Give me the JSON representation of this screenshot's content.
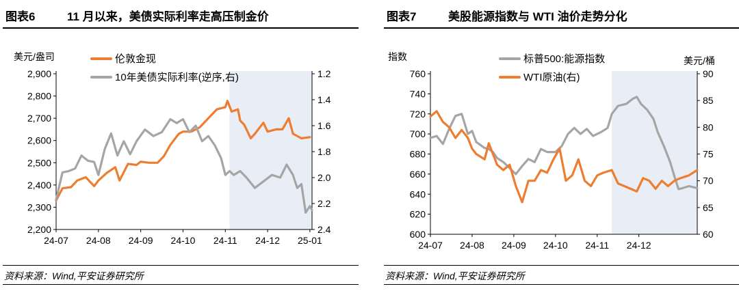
{
  "charts": [
    {
      "fig_num": "图表6",
      "title": "11 月以来，美债实际利率走高压制金价",
      "source": "资料来源：Wind,平安证券研究所",
      "left_unit": "美元/盎司",
      "right_unit": "",
      "legend": [
        "伦敦金现",
        "10年美债实际利率(逆序,右)"
      ]
    },
    {
      "fig_num": "图表7",
      "title": "美股能源指数与 WTI 油价走势分化",
      "source": "资料来源：Wind,平安证券研究所",
      "left_unit": "指数",
      "right_unit": "美元/桶",
      "legend": [
        "标普500:能源指数",
        "WTI原油(右)"
      ]
    }
  ],
  "chart_data": [
    {
      "type": "line",
      "x_ticks": [
        "24-07",
        "24-08",
        "24-09",
        "24-10",
        "24-11",
        "24-12",
        "25-01"
      ],
      "x_range": [
        0,
        6.05
      ],
      "y_left": {
        "ticks": [
          "2,200",
          "2,300",
          "2,400",
          "2,500",
          "2,600",
          "2,700",
          "2,800",
          "2,900"
        ],
        "range": [
          2200,
          2900
        ]
      },
      "y_right": {
        "ticks": [
          "1.2",
          "1.4",
          "1.6",
          "1.8",
          "2.0",
          "2.2",
          "2.4"
        ],
        "range": [
          1.2,
          2.4
        ],
        "inverted": true
      },
      "shaded_x": [
        4.1,
        6.05
      ],
      "series": [
        {
          "name": "伦敦金现",
          "axis": "left",
          "color": "#ED7D31",
          "points": [
            [
              0,
              2330
            ],
            [
              0.15,
              2385
            ],
            [
              0.35,
              2390
            ],
            [
              0.5,
              2420
            ],
            [
              0.7,
              2435
            ],
            [
              0.9,
              2395
            ],
            [
              1.0,
              2420
            ],
            [
              1.2,
              2455
            ],
            [
              1.4,
              2480
            ],
            [
              1.5,
              2420
            ],
            [
              1.7,
              2495
            ],
            [
              1.9,
              2490
            ],
            [
              2.0,
              2505
            ],
            [
              2.2,
              2500
            ],
            [
              2.4,
              2500
            ],
            [
              2.55,
              2530
            ],
            [
              2.7,
              2580
            ],
            [
              2.9,
              2630
            ],
            [
              3.0,
              2640
            ],
            [
              3.2,
              2640
            ],
            [
              3.4,
              2660
            ],
            [
              3.6,
              2700
            ],
            [
              3.8,
              2740
            ],
            [
              4.0,
              2750
            ],
            [
              4.05,
              2778
            ],
            [
              4.15,
              2730
            ],
            [
              4.3,
              2740
            ],
            [
              4.35,
              2690
            ],
            [
              4.45,
              2670
            ],
            [
              4.6,
              2610
            ],
            [
              4.7,
              2630
            ],
            [
              4.9,
              2680
            ],
            [
              5.0,
              2640
            ],
            [
              5.2,
              2650
            ],
            [
              5.35,
              2650
            ],
            [
              5.5,
              2700
            ],
            [
              5.6,
              2630
            ],
            [
              5.8,
              2610
            ],
            [
              6.0,
              2615
            ]
          ]
        },
        {
          "name": "10年美债实际利率(逆序,右)",
          "axis": "right",
          "color": "#A5A5A5",
          "points": [
            [
              0,
              2.17
            ],
            [
              0.15,
              1.96
            ],
            [
              0.3,
              1.95
            ],
            [
              0.45,
              1.93
            ],
            [
              0.6,
              1.83
            ],
            [
              0.75,
              1.87
            ],
            [
              0.9,
              1.88
            ],
            [
              1.0,
              1.98
            ],
            [
              1.15,
              1.78
            ],
            [
              1.3,
              1.66
            ],
            [
              1.45,
              1.83
            ],
            [
              1.6,
              1.72
            ],
            [
              1.75,
              1.82
            ],
            [
              1.9,
              1.72
            ],
            [
              2.1,
              1.63
            ],
            [
              2.3,
              1.68
            ],
            [
              2.5,
              1.65
            ],
            [
              2.7,
              1.55
            ],
            [
              2.85,
              1.58
            ],
            [
              3.0,
              1.55
            ],
            [
              3.15,
              1.65
            ],
            [
              3.3,
              1.6
            ],
            [
              3.45,
              1.72
            ],
            [
              3.6,
              1.68
            ],
            [
              3.75,
              1.75
            ],
            [
              3.9,
              1.85
            ],
            [
              4.0,
              1.98
            ],
            [
              4.1,
              1.95
            ],
            [
              4.2,
              1.98
            ],
            [
              4.35,
              1.95
            ],
            [
              4.5,
              2.0
            ],
            [
              4.7,
              2.08
            ],
            [
              4.9,
              2.03
            ],
            [
              5.1,
              1.98
            ],
            [
              5.3,
              2.0
            ],
            [
              5.45,
              1.9
            ],
            [
              5.6,
              1.98
            ],
            [
              5.7,
              2.08
            ],
            [
              5.8,
              2.05
            ],
            [
              5.9,
              2.27
            ],
            [
              6.0,
              2.22
            ],
            [
              6.05,
              2.25
            ]
          ]
        }
      ]
    },
    {
      "type": "line",
      "x_ticks": [
        "24-07",
        "24-08",
        "24-09",
        "24-10",
        "24-11",
        "24-12"
      ],
      "x_range": [
        0,
        6.4
      ],
      "y_left": {
        "ticks": [
          "600",
          "620",
          "640",
          "660",
          "680",
          "700",
          "720",
          "740",
          "760"
        ],
        "range": [
          600,
          760
        ]
      },
      "y_right": {
        "ticks": [
          "60",
          "65",
          "70",
          "75",
          "80",
          "85",
          "90"
        ],
        "range": [
          60,
          90
        ]
      },
      "shaded_x": [
        4.35,
        6.4
      ],
      "series": [
        {
          "name": "标普500:能源指数",
          "axis": "left",
          "color": "#A5A5A5",
          "points": [
            [
              0,
              696
            ],
            [
              0.15,
              698
            ],
            [
              0.3,
              690
            ],
            [
              0.45,
              705
            ],
            [
              0.6,
              718
            ],
            [
              0.75,
              720
            ],
            [
              0.9,
              700
            ],
            [
              1.0,
              703
            ],
            [
              1.1,
              692
            ],
            [
              1.3,
              686
            ],
            [
              1.4,
              685
            ],
            [
              1.5,
              682
            ],
            [
              1.6,
              676
            ],
            [
              1.75,
              672
            ],
            [
              1.9,
              666
            ],
            [
              2.05,
              660
            ],
            [
              2.2,
              668
            ],
            [
              2.35,
              675
            ],
            [
              2.5,
              672
            ],
            [
              2.65,
              685
            ],
            [
              2.8,
              682
            ],
            [
              3.0,
              682
            ],
            [
              3.15,
              688
            ],
            [
              3.3,
              700
            ],
            [
              3.45,
              706
            ],
            [
              3.6,
              700
            ],
            [
              3.75,
              705
            ],
            [
              3.9,
              698
            ],
            [
              4.1,
              702
            ],
            [
              4.25,
              706
            ],
            [
              4.35,
              720
            ],
            [
              4.5,
              728
            ],
            [
              4.7,
              730
            ],
            [
              4.85,
              735
            ],
            [
              4.95,
              737
            ],
            [
              5.05,
              730
            ],
            [
              5.2,
              724
            ],
            [
              5.35,
              715
            ],
            [
              5.45,
              702
            ],
            [
              5.6,
              688
            ],
            [
              5.75,
              672
            ],
            [
              5.85,
              658
            ],
            [
              5.95,
              645
            ],
            [
              6.05,
              646
            ],
            [
              6.2,
              648
            ],
            [
              6.4,
              646
            ]
          ]
        },
        {
          "name": "WTI原油(右)",
          "axis": "right",
          "color": "#ED7D31",
          "points": [
            [
              0,
              82
            ],
            [
              0.15,
              83
            ],
            [
              0.3,
              81
            ],
            [
              0.45,
              80
            ],
            [
              0.6,
              78
            ],
            [
              0.75,
              79.5
            ],
            [
              0.9,
              78
            ],
            [
              1.0,
              76
            ],
            [
              1.1,
              75
            ],
            [
              1.3,
              74
            ],
            [
              1.4,
              77
            ],
            [
              1.6,
              73
            ],
            [
              1.75,
              72
            ],
            [
              1.9,
              73
            ],
            [
              2.05,
              69
            ],
            [
              2.2,
              66
            ],
            [
              2.35,
              70
            ],
            [
              2.5,
              70
            ],
            [
              2.65,
              72
            ],
            [
              2.8,
              71.5
            ],
            [
              2.95,
              74
            ],
            [
              3.1,
              76
            ],
            [
              3.25,
              70
            ],
            [
              3.4,
              71
            ],
            [
              3.55,
              74
            ],
            [
              3.7,
              70
            ],
            [
              3.85,
              69
            ],
            [
              4.0,
              71
            ],
            [
              4.15,
              71.5
            ],
            [
              4.35,
              72
            ],
            [
              4.5,
              69.5
            ],
            [
              4.65,
              69
            ],
            [
              4.8,
              68.5
            ],
            [
              4.95,
              68
            ],
            [
              5.1,
              70.5
            ],
            [
              5.25,
              70
            ],
            [
              5.4,
              68.5
            ],
            [
              5.55,
              70
            ],
            [
              5.7,
              69
            ],
            [
              5.85,
              70
            ],
            [
              6.0,
              70.5
            ],
            [
              6.2,
              71
            ],
            [
              6.4,
              72
            ]
          ]
        }
      ]
    }
  ]
}
